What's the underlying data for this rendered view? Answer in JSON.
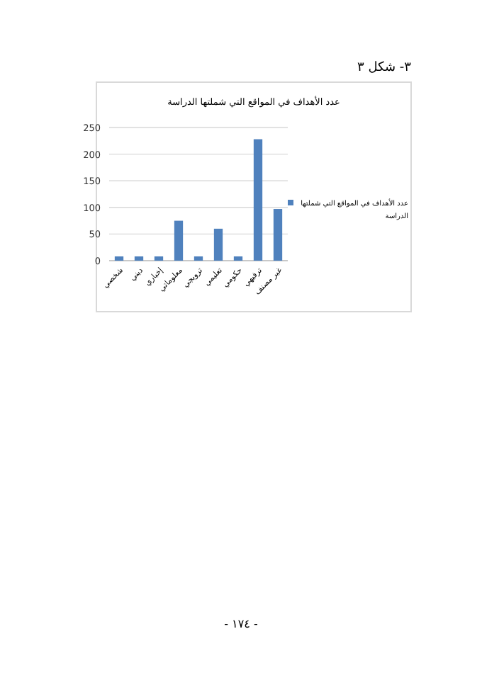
{
  "chart_data": {
    "type": "bar",
    "title": "عدد الأهداف في المواقع التي شملتها الدراسة",
    "categories": [
      "شخصي",
      "ديني",
      "إخباري",
      "معلوماتي",
      "ترويجي",
      "تعليمي",
      "حكومي",
      "ترفيهي",
      "غير مصنف"
    ],
    "series": [
      {
        "name": "عدد الأهداف في المواقع التي شملتها الدراسة",
        "color": "#4f81bd",
        "values": [
          8,
          8,
          8,
          75,
          8,
          60,
          8,
          228,
          97
        ]
      }
    ],
    "ylim": [
      0,
      250
    ],
    "yticks": [
      0,
      50,
      100,
      150,
      200,
      250
    ],
    "grid": "y",
    "legend": "right",
    "annotations": [
      "٣- شكل ٣",
      "- ١٧٤ -"
    ]
  }
}
